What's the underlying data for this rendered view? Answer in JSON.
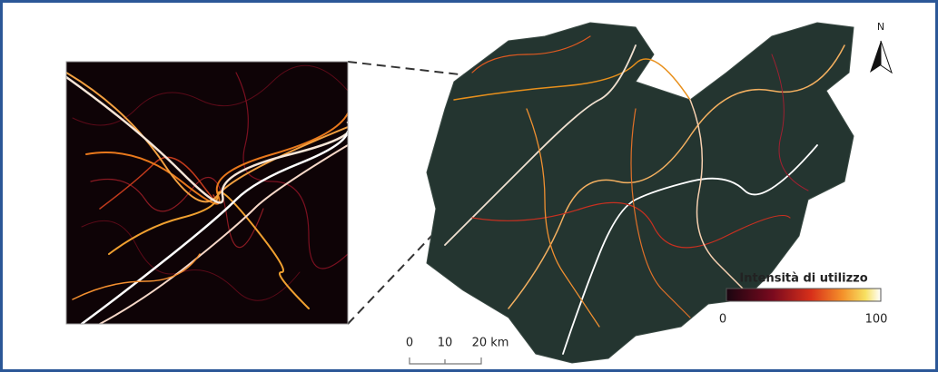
{
  "map": {
    "north_label": "N",
    "legend": {
      "title": "Intensità di utilizzo",
      "min_label": "0",
      "max_label": "100"
    },
    "scale_bar": {
      "labels": [
        "0",
        "10",
        "20 km"
      ]
    }
  }
}
